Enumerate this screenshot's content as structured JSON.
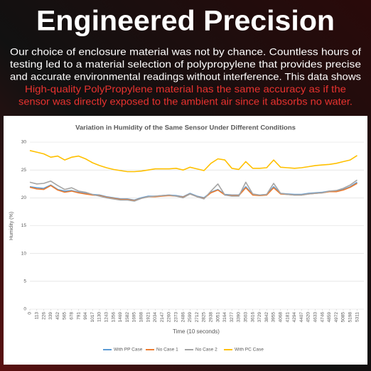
{
  "header": {
    "title": "Engineered Precision",
    "lines": [
      "Our choice of enclosure material was not by chance. Countless hours of",
      "testing led to a material selection of polypropylene that provides precise",
      "and accurate environmental readings without interference. This data shows"
    ],
    "highlight_lines": [
      "High-quality PolyPropylene material has the same accuracy as if the",
      "sensor was directly exposed to the ambient air since it absorbs no water."
    ]
  },
  "chart_data": {
    "type": "line",
    "title": "Variation in Humidity of the Same Sensor Under Different Conditions",
    "x_label": "Time (10 seconds)",
    "y_label": "Humidity (%)",
    "x": [
      0,
      113,
      226,
      339,
      452,
      565,
      678,
      791,
      904,
      1017,
      1130,
      1243,
      1356,
      1469,
      1582,
      1695,
      1808,
      1921,
      2034,
      2147,
      2260,
      2373,
      2486,
      2599,
      2712,
      2825,
      2938,
      3051,
      3164,
      3277,
      3390,
      3503,
      3616,
      3729,
      3842,
      3955,
      4068,
      4181,
      4294,
      4407,
      4520,
      4633,
      4746,
      4859,
      4972,
      5085,
      5198,
      5311
    ],
    "xlim": [
      0,
      5420
    ],
    "xticks": [
      0,
      113,
      226,
      339,
      452,
      565,
      678,
      791,
      904,
      1017,
      1130,
      1243,
      1356,
      1469,
      1582,
      1695,
      1808,
      1921,
      2034,
      2147,
      2260,
      2373,
      2486,
      2599,
      2712,
      2825,
      2938,
      3051,
      3164,
      3277,
      3390,
      3503,
      3616,
      3729,
      3842,
      3955,
      4068,
      4181,
      4294,
      4407,
      4520,
      4633,
      4746,
      4859,
      4972,
      5085,
      5198,
      5311
    ],
    "ylim": [
      0,
      30
    ],
    "yticks": [
      0,
      5,
      10,
      15,
      20,
      25,
      30
    ],
    "grid": true,
    "legend": "bottom",
    "series": [
      {
        "name": "With PP Case",
        "color": "#5b9bd5",
        "values": [
          22.0,
          21.8,
          21.7,
          22.3,
          21.5,
          21.2,
          21.3,
          21.0,
          20.8,
          20.6,
          20.5,
          20.2,
          20.0,
          19.8,
          19.8,
          19.6,
          20.0,
          20.3,
          20.3,
          20.4,
          20.5,
          20.4,
          20.2,
          20.8,
          20.3,
          20.0,
          21.0,
          21.5,
          20.6,
          20.5,
          20.5,
          22.0,
          20.6,
          20.5,
          20.6,
          22.0,
          20.8,
          20.7,
          20.6,
          20.6,
          20.8,
          20.9,
          21.0,
          21.2,
          21.2,
          21.5,
          22.0,
          22.8
        ]
      },
      {
        "name": "No Case 1",
        "color": "#ed7d31",
        "values": [
          21.9,
          21.6,
          21.5,
          22.2,
          21.4,
          21.0,
          21.2,
          20.9,
          20.7,
          20.5,
          20.4,
          20.1,
          19.9,
          19.7,
          19.7,
          19.5,
          19.9,
          20.2,
          20.2,
          20.3,
          20.4,
          20.3,
          20.1,
          20.7,
          20.2,
          19.9,
          20.9,
          21.4,
          20.5,
          20.4,
          20.4,
          21.8,
          20.5,
          20.4,
          20.5,
          21.8,
          20.7,
          20.6,
          20.5,
          20.5,
          20.7,
          20.8,
          20.9,
          21.1,
          21.1,
          21.4,
          21.9,
          22.6
        ]
      },
      {
        "name": "No Case 2",
        "color": "#a5a5a5",
        "values": [
          22.8,
          22.5,
          22.6,
          23.0,
          22.2,
          21.5,
          21.8,
          21.2,
          21.0,
          20.6,
          20.3,
          20.0,
          19.8,
          19.6,
          19.6,
          19.4,
          19.9,
          20.2,
          20.3,
          20.4,
          20.5,
          20.3,
          20.0,
          20.7,
          20.2,
          19.8,
          21.2,
          22.5,
          20.5,
          20.3,
          20.3,
          22.8,
          20.7,
          20.5,
          20.6,
          22.6,
          20.8,
          20.6,
          20.5,
          20.5,
          20.7,
          20.8,
          20.9,
          21.2,
          21.3,
          21.7,
          22.3,
          23.2
        ]
      },
      {
        "name": "With PC Case",
        "color": "#ffc000",
        "values": [
          28.5,
          28.2,
          27.9,
          27.3,
          27.5,
          26.8,
          27.3,
          27.5,
          27.0,
          26.3,
          25.8,
          25.4,
          25.1,
          24.9,
          24.7,
          24.7,
          24.8,
          25.0,
          25.2,
          25.2,
          25.2,
          25.3,
          25.0,
          25.5,
          25.2,
          24.9,
          26.2,
          27.0,
          26.8,
          25.3,
          25.1,
          26.5,
          25.3,
          25.3,
          25.4,
          26.8,
          25.5,
          25.4,
          25.3,
          25.4,
          25.6,
          25.8,
          25.9,
          26.0,
          26.2,
          26.5,
          26.8,
          27.6
        ]
      }
    ]
  }
}
